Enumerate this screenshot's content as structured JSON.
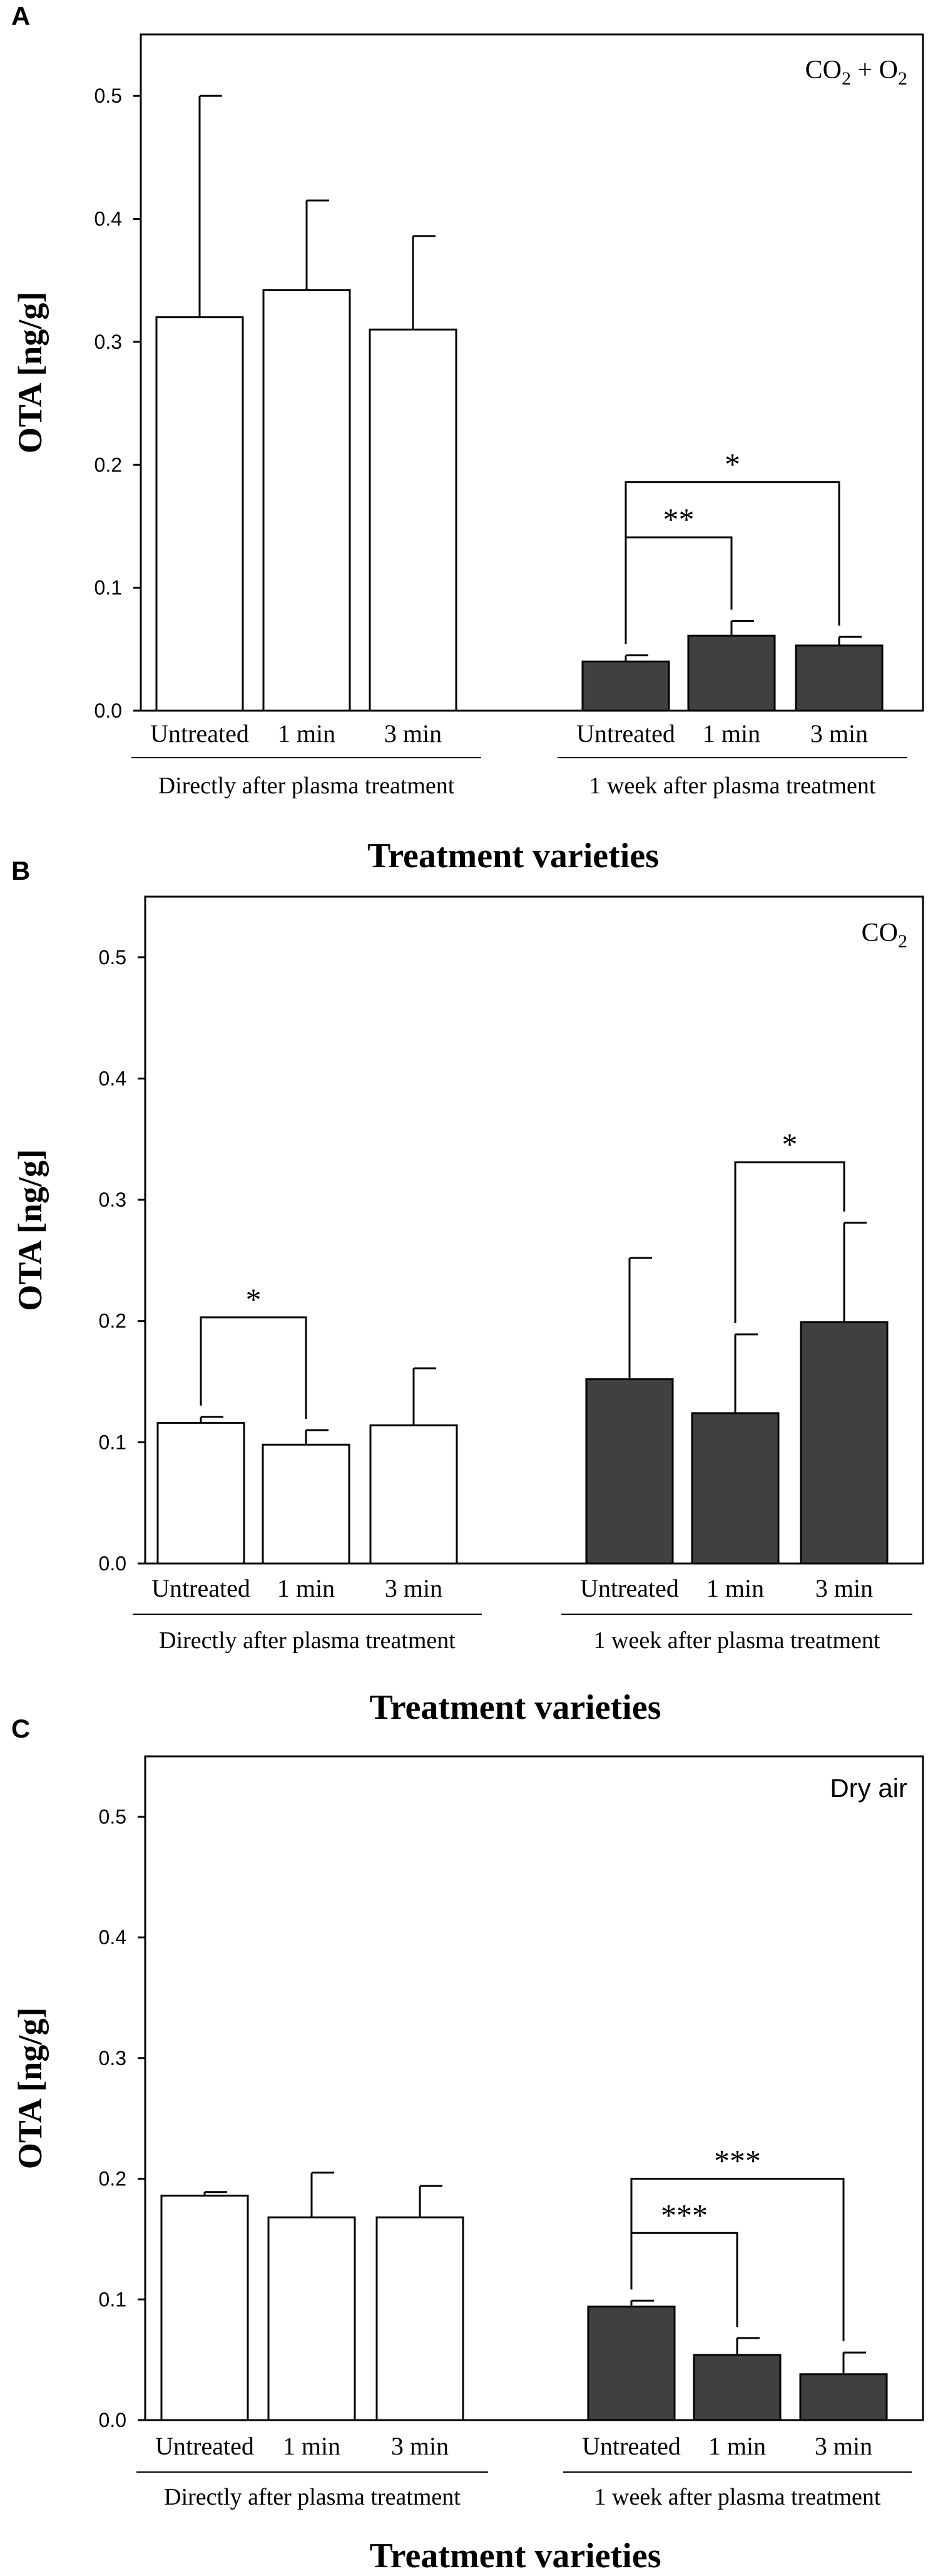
{
  "chart_data": [
    {
      "panel": "A",
      "type": "bar",
      "gas_label": {
        "main": "CO",
        "sub": "2",
        "rest": " + O",
        "sub2": "2"
      },
      "ylabel": "OTA [ng/g]",
      "xlabel": "Treatment varieties",
      "ylim": [
        0,
        0.55
      ],
      "yticks": [
        0.0,
        0.1,
        0.2,
        0.3,
        0.4,
        0.5
      ],
      "ytick_labels": [
        "0.0",
        "0.1",
        "0.2",
        "0.3",
        "0.4",
        "0.5"
      ],
      "groups": [
        {
          "label": "Directly after plasma treatment",
          "fill": "#ffffff",
          "categories": [
            "Untreated",
            "1 min",
            "3 min"
          ],
          "values": [
            0.32,
            0.342,
            0.31
          ],
          "errors": [
            0.18,
            0.073,
            0.076
          ]
        },
        {
          "label": "1 week after plasma treatment",
          "fill": "#404040",
          "categories": [
            "Untreated",
            "1 min",
            "3 min"
          ],
          "values": [
            0.04,
            0.061,
            0.053
          ],
          "errors": [
            0.005,
            0.012,
            0.007
          ]
        }
      ],
      "significance": [
        {
          "group": 1,
          "from": 0,
          "to": 1,
          "label": "**",
          "level": 0.141
        },
        {
          "group": 1,
          "from": 0,
          "to": 2,
          "label": "*",
          "level": 0.186
        }
      ]
    },
    {
      "panel": "B",
      "type": "bar",
      "gas_label": {
        "main": "CO",
        "sub": "2",
        "rest": "",
        "sub2": ""
      },
      "ylabel": "OTA [ng/g]",
      "xlabel": "Treatment varieties",
      "ylim": [
        0,
        0.55
      ],
      "yticks": [
        0.0,
        0.1,
        0.2,
        0.3,
        0.4,
        0.5
      ],
      "ytick_labels": [
        "0.0",
        "0.1",
        "0.2",
        "0.3",
        "0.4",
        "0.5"
      ],
      "groups": [
        {
          "label": "Directly after plasma treatment",
          "fill": "#ffffff",
          "categories": [
            "Untreated",
            "1 min",
            "3 min"
          ],
          "values": [
            0.116,
            0.098,
            0.114
          ],
          "errors": [
            0.005,
            0.012,
            0.047
          ]
        },
        {
          "label": "1 week after plasma treatment",
          "fill": "#404040",
          "categories": [
            "Untreated",
            "1 min",
            "3 min"
          ],
          "values": [
            0.152,
            0.124,
            0.199
          ],
          "errors": [
            0.1,
            0.065,
            0.082
          ]
        }
      ],
      "significance": [
        {
          "group": 0,
          "from": 0,
          "to": 1,
          "label": "*",
          "level": 0.203
        },
        {
          "group": 1,
          "from": 1,
          "to": 2,
          "label": "*",
          "level": 0.331
        }
      ]
    },
    {
      "panel": "C",
      "type": "bar",
      "gas_label": {
        "main": "Dry air",
        "sub": "",
        "rest": "",
        "sub2": ""
      },
      "ylabel": "OTA [ng/g]",
      "xlabel": "Treatment varieties",
      "ylim": [
        0,
        0.55
      ],
      "yticks": [
        0.0,
        0.1,
        0.2,
        0.3,
        0.4,
        0.5
      ],
      "ytick_labels": [
        "0.0",
        "0.1",
        "0.2",
        "0.3",
        "0.4",
        "0.5"
      ],
      "groups": [
        {
          "label": "Directly after plasma treatment",
          "fill": "#ffffff",
          "categories": [
            "Untreated",
            "1 min",
            "3 min"
          ],
          "values": [
            0.186,
            0.168,
            0.168
          ],
          "errors": [
            0.003,
            0.037,
            0.026
          ]
        },
        {
          "label": "1 week after plasma treatment",
          "fill": "#404040",
          "categories": [
            "Untreated",
            "1 min",
            "3 min"
          ],
          "values": [
            0.094,
            0.054,
            0.038
          ],
          "errors": [
            0.005,
            0.014,
            0.018
          ]
        }
      ],
      "significance": [
        {
          "group": 1,
          "from": 0,
          "to": 1,
          "label": "***",
          "level": 0.155
        },
        {
          "group": 1,
          "from": 0,
          "to": 2,
          "label": "***",
          "level": 0.2
        }
      ]
    }
  ]
}
